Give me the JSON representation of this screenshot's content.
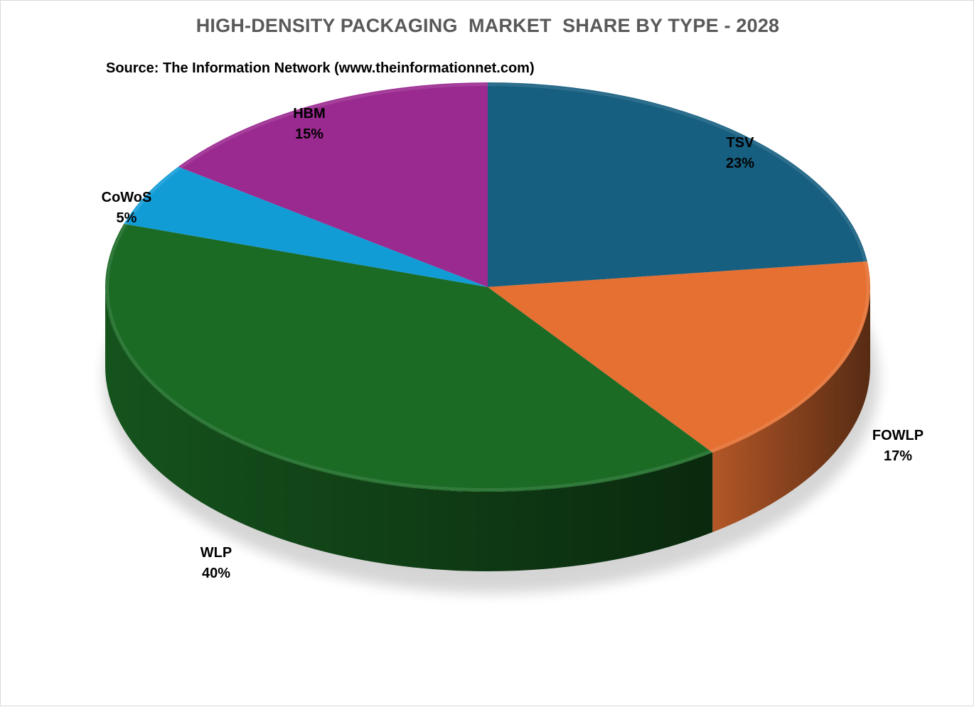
{
  "chart_data": {
    "type": "pie",
    "title": "HIGH-DENSITY PACKAGING  MARKET  SHARE BY TYPE - 2028",
    "subtitle": "Source: The Information Network (www.theinformationnet.com)",
    "slices": [
      {
        "name": "TSV",
        "value": 23,
        "value_label": "23%",
        "color": "#175F80"
      },
      {
        "name": "FOWLP",
        "value": 17,
        "value_label": "17%",
        "color": "#E57032"
      },
      {
        "name": "WLP",
        "value": 40,
        "value_label": "40%",
        "color": "#1B6B25"
      },
      {
        "name": "CoWoS",
        "value": 5,
        "value_label": "5%",
        "color": "#129CD6"
      },
      {
        "name": "HBM",
        "value": 15,
        "value_label": "15%",
        "color": "#9B2A90"
      }
    ],
    "start": "12 o'clock",
    "direction": "clockwise",
    "style": "3d-tilted"
  }
}
